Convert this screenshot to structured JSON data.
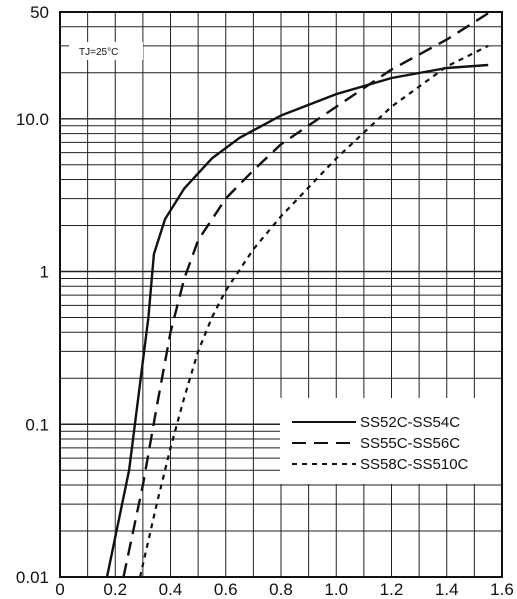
{
  "chart_data": {
    "type": "line",
    "title": "",
    "xlabel": "",
    "ylabel": "",
    "x_scale": "linear",
    "y_scale": "log",
    "xlim": [
      0,
      1.6
    ],
    "ylim": [
      0.01,
      50
    ],
    "grid": true,
    "legend_position": "bottom-right",
    "annotation": "TJ=25°C",
    "x_ticks": [
      {
        "value": 0,
        "label": "0"
      },
      {
        "value": 0.2,
        "label": "0.2"
      },
      {
        "value": 0.4,
        "label": "0.4"
      },
      {
        "value": 0.6,
        "label": "0.6"
      },
      {
        "value": 0.8,
        "label": "0.8"
      },
      {
        "value": 1.0,
        "label": "1.0"
      },
      {
        "value": 1.2,
        "label": "1.2"
      },
      {
        "value": 1.4,
        "label": "1.4"
      },
      {
        "value": 1.6,
        "label": "1.6"
      }
    ],
    "y_ticks": [
      {
        "value": 0.01,
        "label": "0.01"
      },
      {
        "value": 0.1,
        "label": "0.1"
      },
      {
        "value": 1,
        "label": "1"
      },
      {
        "value": 10,
        "label": "10.0"
      },
      {
        "value": 50,
        "label": "50"
      }
    ],
    "series": [
      {
        "name": "SS52C-SS54C",
        "line_style": "solid",
        "x": [
          0.17,
          0.25,
          0.32,
          0.34,
          0.38,
          0.45,
          0.55,
          0.65,
          0.8,
          1.0,
          1.2,
          1.4,
          1.55
        ],
        "y": [
          0.01,
          0.05,
          0.5,
          1.3,
          2.2,
          3.5,
          5.5,
          7.5,
          10.5,
          14.5,
          18.5,
          21.5,
          22.5
        ]
      },
      {
        "name": "SS55C-SS56C",
        "line_style": "dashed",
        "x": [
          0.23,
          0.3,
          0.35,
          0.4,
          0.45,
          0.5,
          0.6,
          0.7,
          0.8,
          1.0,
          1.2,
          1.4,
          1.55
        ],
        "y": [
          0.01,
          0.04,
          0.13,
          0.4,
          0.9,
          1.6,
          3.0,
          4.6,
          6.8,
          12.0,
          21.0,
          33.0,
          49.0
        ]
      },
      {
        "name": "SS58C-SS510C",
        "line_style": "dotted",
        "x": [
          0.29,
          0.35,
          0.4,
          0.45,
          0.5,
          0.55,
          0.6,
          0.7,
          0.8,
          1.0,
          1.2,
          1.4,
          1.55
        ],
        "y": [
          0.01,
          0.03,
          0.07,
          0.15,
          0.3,
          0.5,
          0.75,
          1.4,
          2.3,
          5.5,
          12.0,
          22.0,
          30.0
        ]
      }
    ]
  }
}
